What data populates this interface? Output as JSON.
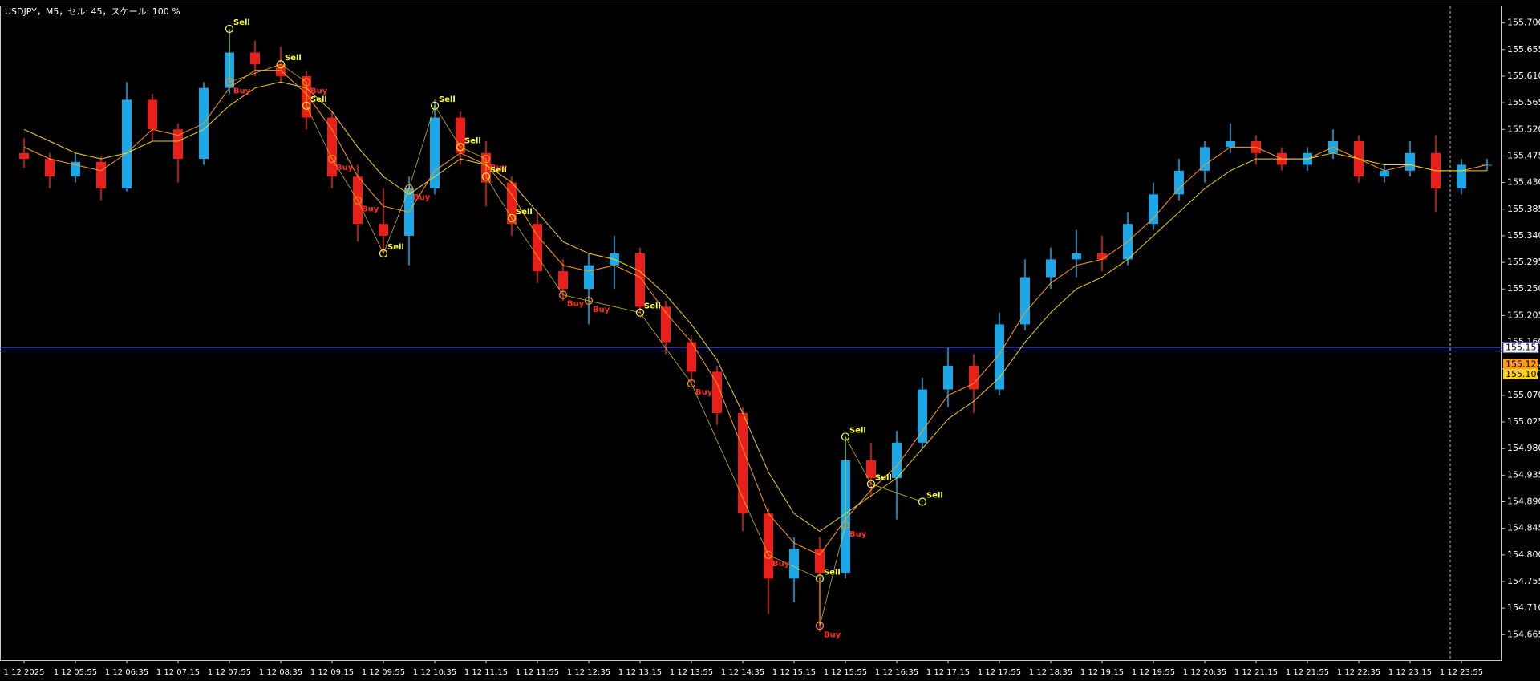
{
  "chart_data": {
    "type": "candlestick",
    "title": "USDJPY，M5，セル: 45，スケール: 100 %",
    "categories": [
      "1 12 2025",
      null,
      "1 12 05:55",
      null,
      "1 12 06:35",
      null,
      "1 12 07:15",
      null,
      "1 12 07:55",
      null,
      "1 12 08:35",
      null,
      "1 12 09:15",
      null,
      "1 12 09:55",
      null,
      "1 12 10:35",
      null,
      "1 12 11:15",
      null,
      "1 12 11:55",
      null,
      "1 12 12:35",
      null,
      "1 12 13:15",
      null,
      "1 12 13:55",
      null,
      "1 12 14:35",
      null,
      "1 12 15:15",
      null,
      "1 12 15:55",
      null,
      "1 12 16:35",
      null,
      "1 12 17:15",
      null,
      "1 12 17:55",
      null,
      "1 12 18:35",
      null,
      "1 12 19:15",
      null,
      "1 12 19:55",
      null,
      "1 12 20:35",
      null,
      "1 12 21:15",
      null,
      "1 12 21:55",
      null,
      "1 12 22:35",
      null,
      "1 12 23:15",
      null,
      "1 12 23:55",
      null
    ],
    "open": [
      155.48,
      155.47,
      155.44,
      155.465,
      155.42,
      155.57,
      155.52,
      155.47,
      155.59,
      155.65,
      155.63,
      155.61,
      155.54,
      155.44,
      155.36,
      155.34,
      155.42,
      155.54,
      155.48,
      155.43,
      155.36,
      155.28,
      155.25,
      155.29,
      155.31,
      155.22,
      155.16,
      155.11,
      155.04,
      154.87,
      154.76,
      154.81,
      154.77,
      154.96,
      154.93,
      154.99,
      155.08,
      155.12,
      155.08,
      155.19,
      155.27,
      155.3,
      155.31,
      155.3,
      155.36,
      155.41,
      155.45,
      155.49,
      155.5,
      155.48,
      155.46,
      155.48,
      155.5,
      155.44,
      155.45,
      155.48,
      155.42,
      155.46
    ],
    "high": [
      155.505,
      155.48,
      155.48,
      155.475,
      155.6,
      155.58,
      155.53,
      155.6,
      155.69,
      155.67,
      155.66,
      155.62,
      155.55,
      155.46,
      155.42,
      155.44,
      155.57,
      155.55,
      155.5,
      155.44,
      155.38,
      155.3,
      155.31,
      155.34,
      155.32,
      155.23,
      155.17,
      155.12,
      155.05,
      154.88,
      154.83,
      154.83,
      155.0,
      154.99,
      155.01,
      155.1,
      155.15,
      155.14,
      155.21,
      155.3,
      155.32,
      155.35,
      155.34,
      155.38,
      155.43,
      155.47,
      155.5,
      155.53,
      155.51,
      155.49,
      155.49,
      155.52,
      155.51,
      155.46,
      155.5,
      155.51,
      155.47,
      155.47
    ],
    "low": [
      155.455,
      155.42,
      155.43,
      155.4,
      155.415,
      155.5,
      155.43,
      155.46,
      155.58,
      155.61,
      155.6,
      155.52,
      155.42,
      155.33,
      155.31,
      155.29,
      155.41,
      155.46,
      155.39,
      155.34,
      155.26,
      155.23,
      155.19,
      155.25,
      155.21,
      155.14,
      155.09,
      155.02,
      154.84,
      154.7,
      154.72,
      154.67,
      154.76,
      154.9,
      154.86,
      154.98,
      155.05,
      155.04,
      155.07,
      155.18,
      155.25,
      155.27,
      155.28,
      155.29,
      155.35,
      155.4,
      155.43,
      155.48,
      155.46,
      155.45,
      155.45,
      155.47,
      155.43,
      155.43,
      155.44,
      155.38,
      155.41,
      155.45
    ],
    "close": [
      155.47,
      155.44,
      155.465,
      155.42,
      155.57,
      155.52,
      155.47,
      155.59,
      155.65,
      155.63,
      155.61,
      155.54,
      155.44,
      155.36,
      155.34,
      155.42,
      155.54,
      155.48,
      155.43,
      155.36,
      155.28,
      155.25,
      155.29,
      155.31,
      155.22,
      155.16,
      155.11,
      155.04,
      154.87,
      154.76,
      154.81,
      154.77,
      154.96,
      154.93,
      154.99,
      155.08,
      155.12,
      155.08,
      155.19,
      155.27,
      155.3,
      155.31,
      155.3,
      155.36,
      155.41,
      155.45,
      155.49,
      155.5,
      155.48,
      155.46,
      155.48,
      155.5,
      155.44,
      155.45,
      155.48,
      155.42,
      155.46,
      155.46
    ],
    "up_color": "#1ea7e6",
    "down_color": "#e8201c",
    "moving_averages": [
      {
        "color": "#ff9a1a",
        "values": [
          155.49,
          155.47,
          155.46,
          155.45,
          155.48,
          155.52,
          155.51,
          155.53,
          155.59,
          155.62,
          155.62,
          155.58,
          155.52,
          155.44,
          155.39,
          155.38,
          155.45,
          155.48,
          155.46,
          155.41,
          155.34,
          155.29,
          155.28,
          155.29,
          155.27,
          155.21,
          155.16,
          155.09,
          154.98,
          154.87,
          154.82,
          154.8,
          154.86,
          154.91,
          154.95,
          155.01,
          155.07,
          155.09,
          155.14,
          155.21,
          155.26,
          155.29,
          155.3,
          155.33,
          155.37,
          155.42,
          155.46,
          155.49,
          155.49,
          155.47,
          155.47,
          155.49,
          155.47,
          155.45,
          155.46,
          155.45,
          155.45,
          155.46
        ]
      },
      {
        "color": "#f2d21a",
        "values": [
          155.52,
          155.5,
          155.48,
          155.47,
          155.48,
          155.5,
          155.5,
          155.52,
          155.56,
          155.59,
          155.6,
          155.59,
          155.55,
          155.49,
          155.44,
          155.41,
          155.44,
          155.47,
          155.46,
          155.43,
          155.38,
          155.33,
          155.31,
          155.3,
          155.28,
          155.24,
          155.19,
          155.13,
          155.04,
          154.94,
          154.87,
          154.84,
          154.87,
          154.9,
          154.93,
          154.98,
          155.03,
          155.06,
          155.1,
          155.16,
          155.21,
          155.25,
          155.27,
          155.3,
          155.34,
          155.38,
          155.42,
          155.45,
          155.47,
          155.47,
          155.47,
          155.48,
          155.47,
          155.46,
          155.46,
          155.45,
          155.45,
          155.45
        ]
      }
    ],
    "signals": [
      {
        "label": "Sell",
        "index": 8,
        "price": 155.69
      },
      {
        "label": "Buy",
        "index": 8,
        "price": 155.6
      },
      {
        "label": "Sell",
        "index": 10,
        "price": 155.63
      },
      {
        "label": "Buy",
        "index": 11,
        "price": 155.6
      },
      {
        "label": "Sell",
        "index": 11,
        "price": 155.56
      },
      {
        "label": "Buy",
        "index": 12,
        "price": 155.47
      },
      {
        "label": "Buy",
        "index": 13,
        "price": 155.4
      },
      {
        "label": "Sell",
        "index": 14,
        "price": 155.31
      },
      {
        "label": "Buy",
        "index": 15,
        "price": 155.42
      },
      {
        "label": "Sell",
        "index": 16,
        "price": 155.56
      },
      {
        "label": "Sell",
        "index": 17,
        "price": 155.49
      },
      {
        "label": "Buy",
        "index": 18,
        "price": 155.47
      },
      {
        "label": "Sell",
        "index": 18,
        "price": 155.44
      },
      {
        "label": "Sell",
        "index": 19,
        "price": 155.37
      },
      {
        "label": "Buy",
        "index": 21,
        "price": 155.24
      },
      {
        "label": "Buy",
        "index": 22,
        "price": 155.23
      },
      {
        "label": "Sell",
        "index": 24,
        "price": 155.21
      },
      {
        "label": "Buy",
        "index": 26,
        "price": 155.09
      },
      {
        "label": "Buy",
        "index": 29,
        "price": 154.8
      },
      {
        "label": "Sell",
        "index": 31,
        "price": 154.76
      },
      {
        "label": "Buy",
        "index": 31,
        "price": 154.68
      },
      {
        "label": "Buy",
        "index": 32,
        "price": 154.85
      },
      {
        "label": "Sell",
        "index": 32,
        "price": 155.0
      },
      {
        "label": "Sell",
        "index": 33,
        "price": 154.92
      },
      {
        "label": "Sell",
        "index": 35,
        "price": 154.89
      }
    ],
    "hlines": [
      155.151,
      155.145
    ],
    "price_levels": [
      {
        "value": 155.151,
        "label": "155.151",
        "bg": "#ffffff"
      },
      {
        "value": 155.123,
        "label": "155.123",
        "bg": "#ff9a1a"
      },
      {
        "value": 155.106,
        "label": "155.106",
        "bg": "#ffd21a"
      }
    ],
    "ylim": [
      154.622,
      155.728
    ],
    "yticks": [
      {
        "value": 155.7,
        "label": "155.700"
      },
      {
        "value": 155.655,
        "label": "155.655"
      },
      {
        "value": 155.61,
        "label": "155.610"
      },
      {
        "value": 155.565,
        "label": "155.565"
      },
      {
        "value": 155.52,
        "label": "155.520"
      },
      {
        "value": 155.475,
        "label": "155.475"
      },
      {
        "value": 155.43,
        "label": "155.430"
      },
      {
        "value": 155.385,
        "label": "155.385"
      },
      {
        "value": 155.34,
        "label": "155.340"
      },
      {
        "value": 155.295,
        "label": "155.295"
      },
      {
        "value": 155.25,
        "label": "155.250"
      },
      {
        "value": 155.205,
        "label": "155.205"
      },
      {
        "value": 155.16,
        "label": "155.160"
      },
      {
        "value": 155.115,
        "label": "155.115"
      },
      {
        "value": 155.07,
        "label": "155.070"
      },
      {
        "value": 155.025,
        "label": "155.025"
      },
      {
        "value": 154.98,
        "label": "154.980"
      },
      {
        "value": 154.935,
        "label": "154.935"
      },
      {
        "value": 154.89,
        "label": "154.890"
      },
      {
        "value": 154.845,
        "label": "154.845"
      },
      {
        "value": 154.8,
        "label": "154.800"
      },
      {
        "value": 154.755,
        "label": "154.755"
      },
      {
        "value": 154.71,
        "label": "154.710"
      },
      {
        "value": 154.665,
        "label": "154.665"
      }
    ]
  }
}
